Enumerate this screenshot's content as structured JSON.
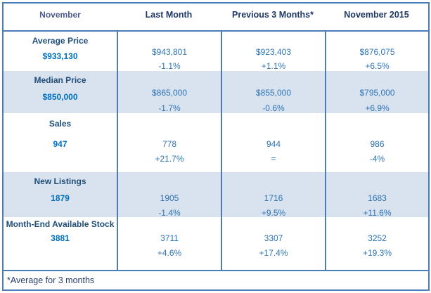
{
  "colors": {
    "border_blue": "#4a7cb8",
    "header_navy": "#1f3864",
    "first_header_slate": "#4d5b8c",
    "row_label_blue": "#1f4e79",
    "current_value_blue": "#0070c0",
    "comparison_blue": "#2e75b6",
    "shaded_row_bg": "#d9e2ef"
  },
  "table": {
    "header": {
      "col1": "November",
      "col2": "Last Month",
      "col3": "Previous 3 Months*",
      "col4": "November 2015"
    },
    "rows": [
      {
        "label": "Average Price",
        "value": "$933,130",
        "cells": [
          {
            "value": "$943,801",
            "change": "-1.1%"
          },
          {
            "value": "$923,403",
            "change": "+1.1%"
          },
          {
            "value": "$876,075",
            "change": "+6.5%"
          }
        ]
      },
      {
        "label": "Median Price",
        "value": "$850,000",
        "cells": [
          {
            "value": "$865,000",
            "change": "-1.7%"
          },
          {
            "value": "$855,000",
            "change": "-0.6%"
          },
          {
            "value": "$795,000",
            "change": "+6.9%"
          }
        ]
      },
      {
        "label": "Sales",
        "value": "947",
        "cells": [
          {
            "value": "778",
            "change": "+21.7%"
          },
          {
            "value": "944",
            "change": "="
          },
          {
            "value": "986",
            "change": "-4%"
          }
        ]
      },
      {
        "label": "New Listings",
        "value": "1879",
        "cells": [
          {
            "value": "1905",
            "change": "-1.4%"
          },
          {
            "value": "1716",
            "change": "+9.5%"
          },
          {
            "value": "1683",
            "change": "+11.6%"
          }
        ]
      },
      {
        "label": "Month-End Available Stock",
        "value": "3881",
        "cells": [
          {
            "value": "3711",
            "change": "+4.6%"
          },
          {
            "value": "3307",
            "change": "+17.4%"
          },
          {
            "value": "3252",
            "change": "+19.3%"
          }
        ]
      }
    ],
    "footnote": "*Average for 3 months"
  }
}
